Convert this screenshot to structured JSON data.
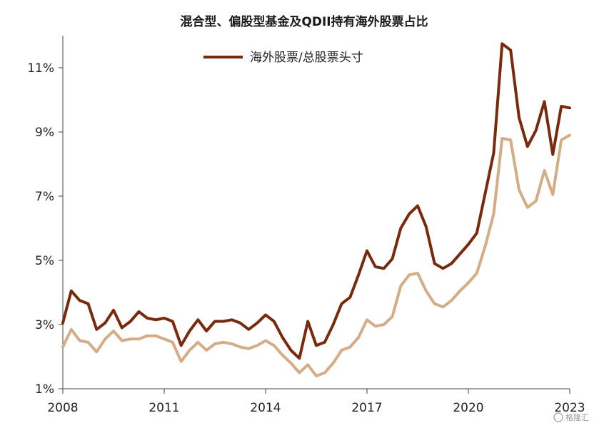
{
  "chart_data": {
    "type": "line",
    "title": "混合型、偏股型基金及QDII持有海外股票占比",
    "xlabel": "",
    "ylabel": "",
    "xlim": [
      2008,
      2023
    ],
    "ylim": [
      1,
      12
    ],
    "yticks": [
      "1%",
      "3%",
      "5%",
      "7%",
      "9%",
      "11%"
    ],
    "yticks_values": [
      1,
      3,
      5,
      7,
      9,
      11
    ],
    "xticks": [
      "2008",
      "2011",
      "2014",
      "2017",
      "2020",
      "2023"
    ],
    "xticks_values": [
      2008,
      2011,
      2014,
      2017,
      2020,
      2023
    ],
    "grid": false,
    "legend_position": "top-center",
    "series": [
      {
        "name": "海外股票/总股票头寸",
        "color": "#7a2a0c",
        "x": [
          2008.0,
          2008.25,
          2008.5,
          2008.75,
          2009.0,
          2009.25,
          2009.5,
          2009.75,
          2010.0,
          2010.25,
          2010.5,
          2010.75,
          2011.0,
          2011.25,
          2011.5,
          2011.75,
          2012.0,
          2012.25,
          2012.5,
          2012.75,
          2013.0,
          2013.25,
          2013.5,
          2013.75,
          2014.0,
          2014.25,
          2014.5,
          2014.75,
          2015.0,
          2015.25,
          2015.5,
          2015.75,
          2016.0,
          2016.25,
          2016.5,
          2016.75,
          2017.0,
          2017.25,
          2017.5,
          2017.75,
          2018.0,
          2018.25,
          2018.5,
          2018.75,
          2019.0,
          2019.25,
          2019.5,
          2019.75,
          2020.0,
          2020.25,
          2020.5,
          2020.75,
          2021.0,
          2021.25,
          2021.5,
          2021.75,
          2022.0,
          2022.25,
          2022.5,
          2022.75,
          2023.0
        ],
        "values": [
          3.05,
          4.05,
          3.75,
          3.65,
          2.85,
          3.05,
          3.45,
          2.9,
          3.1,
          3.4,
          3.2,
          3.15,
          3.2,
          3.1,
          2.35,
          2.8,
          3.15,
          2.8,
          3.1,
          3.1,
          3.15,
          3.05,
          2.85,
          3.05,
          3.3,
          3.1,
          2.6,
          2.2,
          1.95,
          3.1,
          2.35,
          2.45,
          3.0,
          3.65,
          3.85,
          4.55,
          5.3,
          4.8,
          4.75,
          5.05,
          6.0,
          6.45,
          6.7,
          6.05,
          4.9,
          4.75,
          4.9,
          5.2,
          5.5,
          5.85,
          7.1,
          8.35,
          11.75,
          11.55,
          9.45,
          8.55,
          9.05,
          9.95,
          8.3,
          9.8,
          9.75
        ]
      },
      {
        "name": "",
        "color": "#d4ad86",
        "x": [
          2008.0,
          2008.25,
          2008.5,
          2008.75,
          2009.0,
          2009.25,
          2009.5,
          2009.75,
          2010.0,
          2010.25,
          2010.5,
          2010.75,
          2011.0,
          2011.25,
          2011.5,
          2011.75,
          2012.0,
          2012.25,
          2012.5,
          2012.75,
          2013.0,
          2013.25,
          2013.5,
          2013.75,
          2014.0,
          2014.25,
          2014.5,
          2014.75,
          2015.0,
          2015.25,
          2015.5,
          2015.75,
          2016.0,
          2016.25,
          2016.5,
          2016.75,
          2017.0,
          2017.25,
          2017.5,
          2017.75,
          2018.0,
          2018.25,
          2018.5,
          2018.75,
          2019.0,
          2019.25,
          2019.5,
          2019.75,
          2020.0,
          2020.25,
          2020.5,
          2020.75,
          2021.0,
          2021.25,
          2021.5,
          2021.75,
          2022.0,
          2022.25,
          2022.5,
          2022.75,
          2023.0
        ],
        "values": [
          2.3,
          2.85,
          2.5,
          2.45,
          2.15,
          2.55,
          2.8,
          2.5,
          2.55,
          2.55,
          2.65,
          2.65,
          2.55,
          2.45,
          1.85,
          2.2,
          2.45,
          2.2,
          2.4,
          2.45,
          2.4,
          2.3,
          2.25,
          2.35,
          2.5,
          2.35,
          2.05,
          1.8,
          1.5,
          1.75,
          1.4,
          1.5,
          1.8,
          2.2,
          2.3,
          2.6,
          3.15,
          2.95,
          3.0,
          3.25,
          4.2,
          4.55,
          4.6,
          4.05,
          3.65,
          3.55,
          3.75,
          4.05,
          4.3,
          4.6,
          5.45,
          6.45,
          8.8,
          8.75,
          7.2,
          6.65,
          6.85,
          7.8,
          7.05,
          8.75,
          8.9
        ]
      }
    ]
  },
  "watermark": "格隆汇"
}
